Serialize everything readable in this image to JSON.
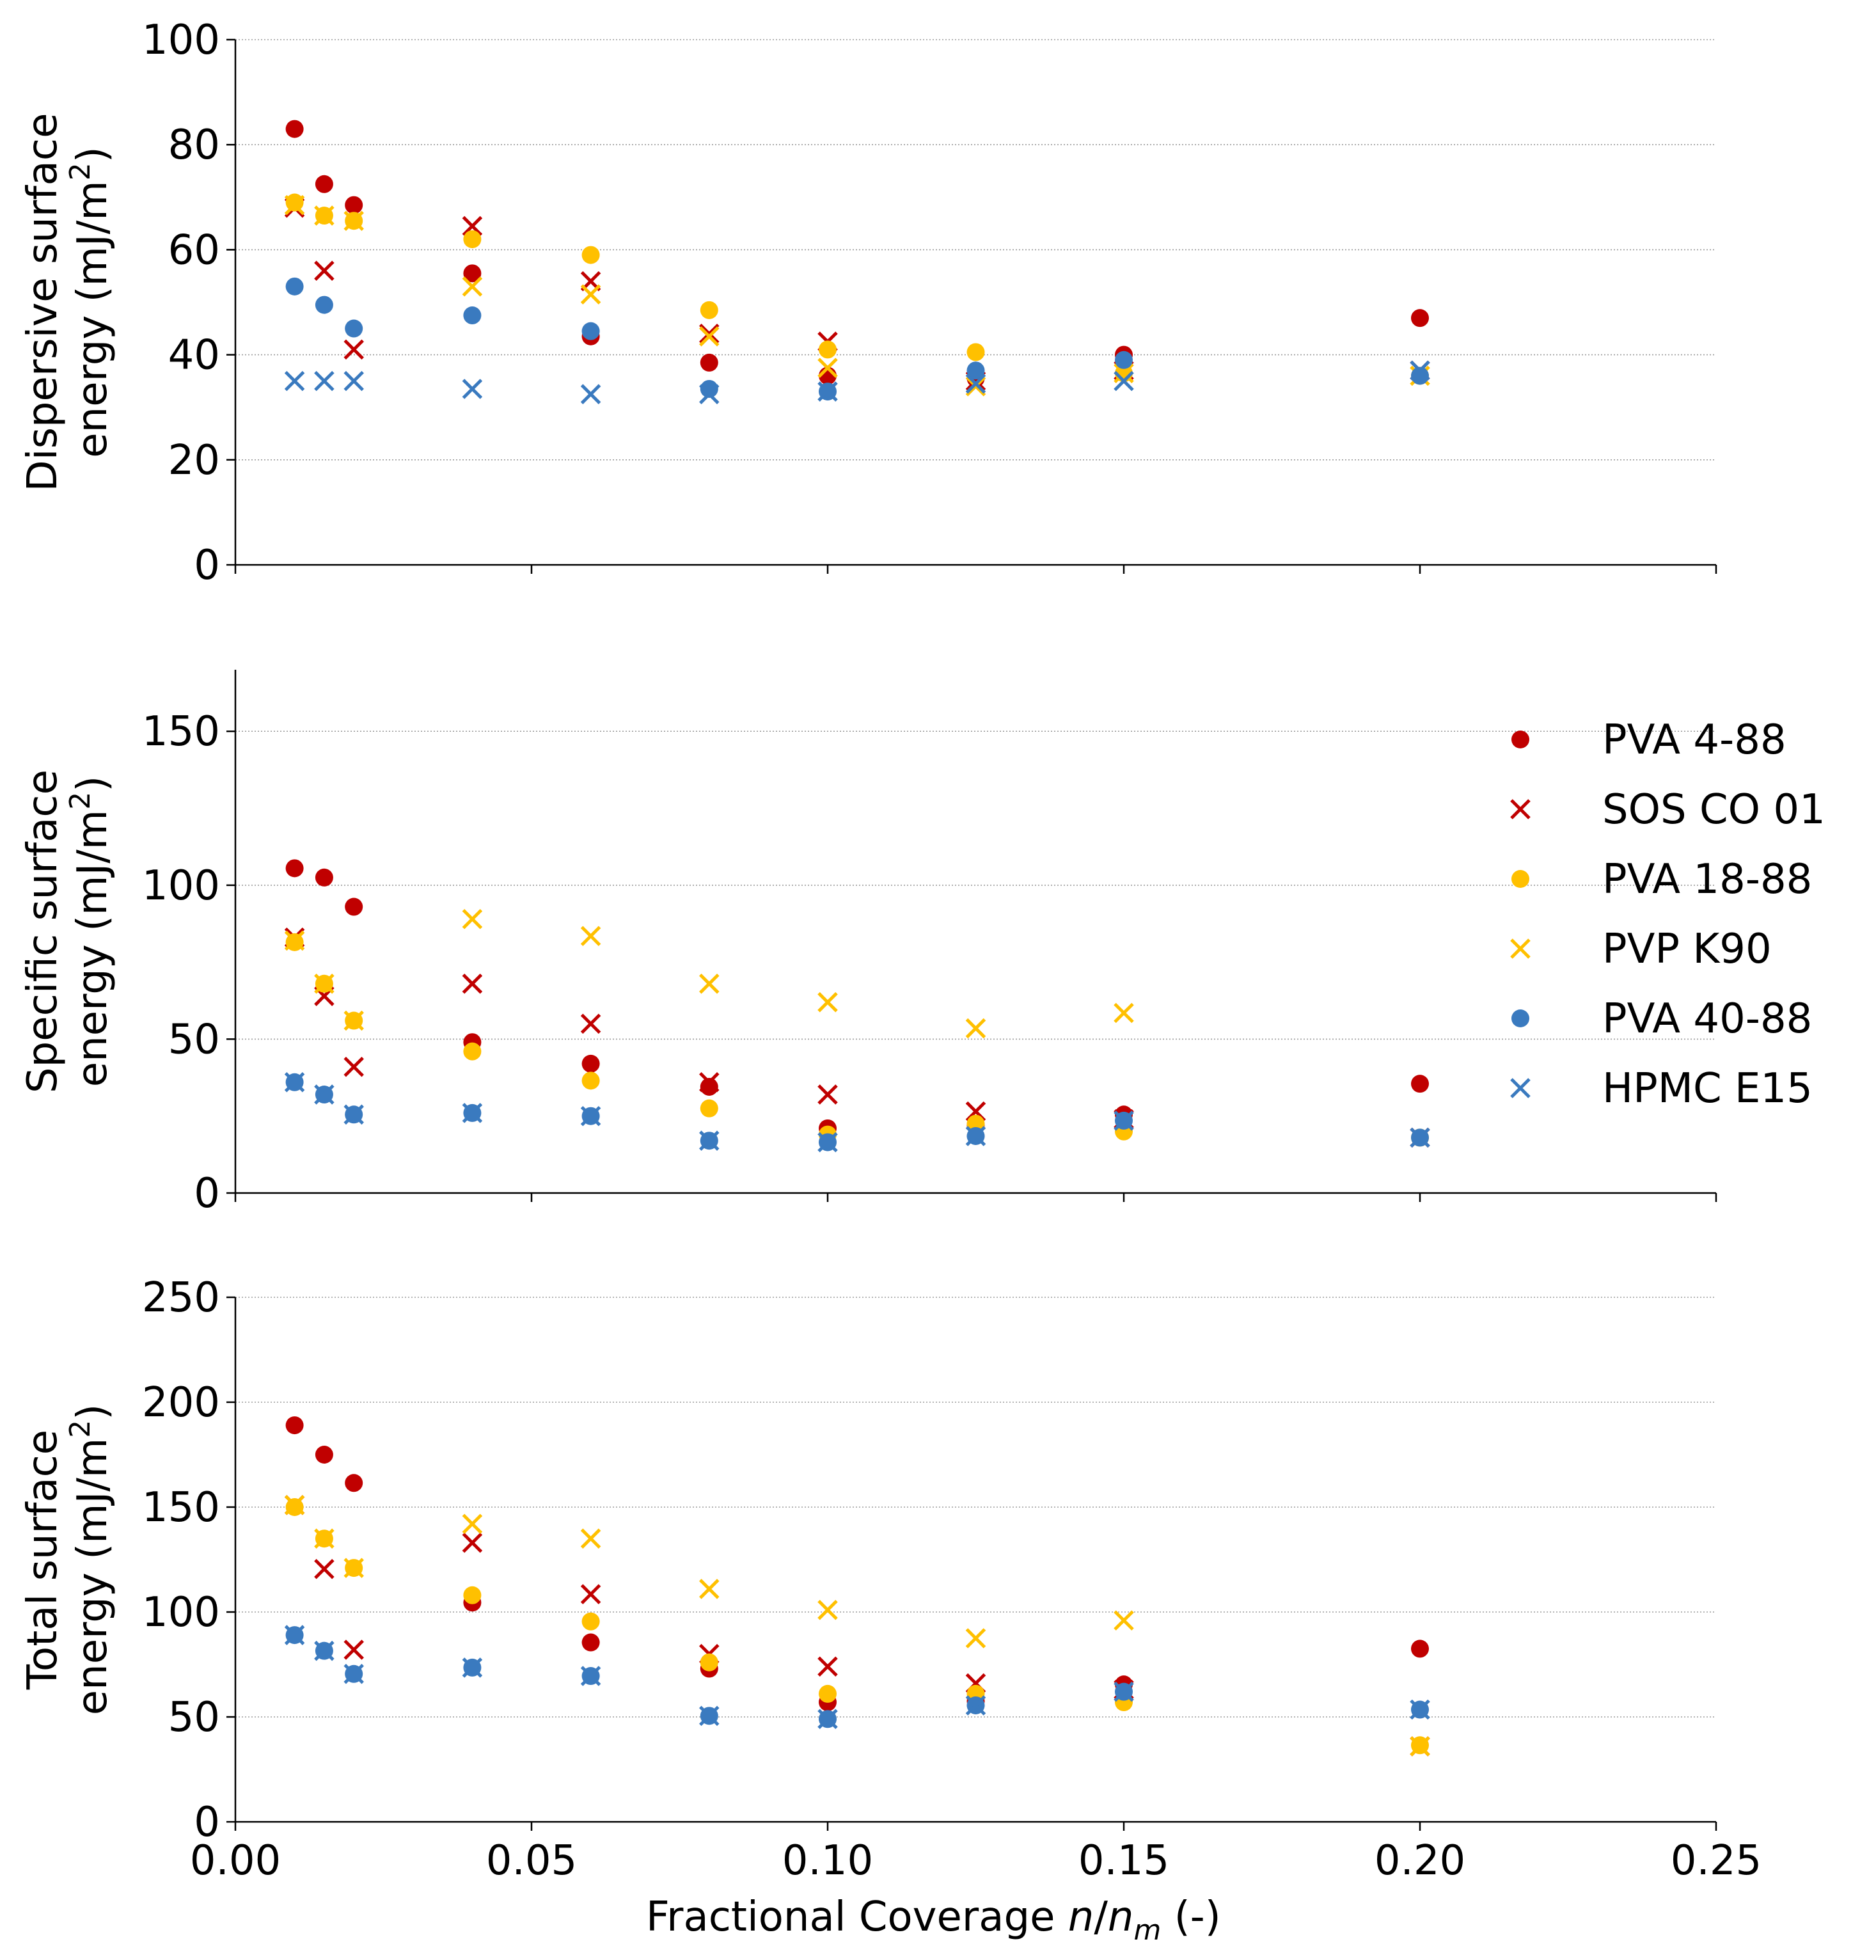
{
  "chart_data": {
    "type": "scatter",
    "shared_x_axis": {
      "label_prefix": "Fractional Coverage ",
      "label_var_n": "n",
      "label_slash": "/",
      "label_var_nm": "n",
      "label_sub": "m",
      "label_suffix": " (-)",
      "range": [
        0,
        0.25
      ],
      "ticks": [
        0,
        0.05,
        0.1,
        0.15,
        0.2,
        0.25
      ],
      "tick_labels": [
        "0.00",
        "0.05",
        "0.10",
        "0.15",
        "0.20",
        "0.25"
      ]
    },
    "legend": {
      "position": "right of middle panel",
      "entries": [
        {
          "name": "PVA 4-88",
          "marker": "circle",
          "color": "#c00000"
        },
        {
          "name": "SOS CO 01",
          "marker": "x",
          "color": "#c00000"
        },
        {
          "name": "PVA 18-88",
          "marker": "circle",
          "color": "#ffc000"
        },
        {
          "name": "PVP K90",
          "marker": "x",
          "color": "#ffc000"
        },
        {
          "name": "PVA 40-88",
          "marker": "circle",
          "color": "#3a7abf"
        },
        {
          "name": "HPMC E15",
          "marker": "x",
          "color": "#3a7abf"
        }
      ]
    },
    "panels": [
      {
        "id": "dispersive",
        "ylabel_line1": "Dispersive surface",
        "ylabel_line2_prefix": "energy (mJ/m",
        "ylabel_sup": "2",
        "ylabel_line2_suffix": ")",
        "ylim": [
          0,
          100
        ],
        "yticks": [
          0,
          20,
          40,
          60,
          80,
          100
        ],
        "ytick_labels": [
          "0",
          "20",
          "40",
          "60",
          "80",
          "100"
        ],
        "grid": "horizontal dotted",
        "series": [
          {
            "name": "PVA 4-88",
            "x": [
              0.01,
              0.015,
              0.02,
              0.04,
              0.06,
              0.08,
              0.1,
              0.125,
              0.15,
              0.2
            ],
            "y": [
              83,
              72.5,
              68.5,
              55.5,
              43.5,
              38.5,
              36,
              35.5,
              40,
              47
            ]
          },
          {
            "name": "SOS CO 01",
            "x": [
              0.01,
              0.015,
              0.02,
              0.04,
              0.06,
              0.08,
              0.1,
              0.125,
              0.15,
              0.2
            ],
            "y": [
              68,
              56,
              41,
              64.5,
              54,
              44,
              42.5,
              35,
              37,
              37
            ]
          },
          {
            "name": "PVA 18-88",
            "x": [
              0.01,
              0.015,
              0.02,
              0.04,
              0.06,
              0.08,
              0.1,
              0.125,
              0.15,
              0.2
            ],
            "y": [
              69,
              66.5,
              65.5,
              62,
              59,
              48.5,
              41,
              40.5,
              36.5,
              36
            ]
          },
          {
            "name": "PVP K90",
            "x": [
              0.01,
              0.015,
              0.02,
              0.04,
              0.06,
              0.08,
              0.1,
              0.125,
              0.15,
              0.2
            ],
            "y": [
              68.5,
              66.5,
              65.5,
              53,
              51.5,
              43.5,
              37.5,
              34,
              36.5,
              36
            ]
          },
          {
            "name": "PVA 40-88",
            "x": [
              0.01,
              0.015,
              0.02,
              0.04,
              0.06,
              0.08,
              0.1,
              0.125,
              0.15,
              0.2
            ],
            "y": [
              53,
              49.5,
              45,
              47.5,
              44.5,
              33.5,
              33,
              37,
              39,
              36
            ]
          },
          {
            "name": "HPMC E15",
            "x": [
              0.01,
              0.015,
              0.02,
              0.04,
              0.06,
              0.08,
              0.1,
              0.125,
              0.15,
              0.2
            ],
            "y": [
              35,
              35,
              35,
              33.5,
              32.5,
              32.5,
              33,
              34.5,
              35,
              37
            ]
          }
        ]
      },
      {
        "id": "specific",
        "ylabel_line1": "Specific surface",
        "ylabel_line2_prefix": "energy (mJ/m",
        "ylabel_sup": "2",
        "ylabel_line2_suffix": ")",
        "ylim": [
          0,
          170
        ],
        "yticks": [
          0,
          50,
          100,
          150
        ],
        "ytick_labels": [
          "0",
          "50",
          "100",
          "150"
        ],
        "grid": "horizontal dotted",
        "series": [
          {
            "name": "PVA 4-88",
            "x": [
              0.01,
              0.015,
              0.02,
              0.04,
              0.06,
              0.08,
              0.1,
              0.125,
              0.15,
              0.2
            ],
            "y": [
              105.5,
              102.5,
              93,
              49,
              42,
              34.5,
              21,
              22,
              25.5,
              35.5
            ]
          },
          {
            "name": "SOS CO 01",
            "x": [
              0.01,
              0.015,
              0.02,
              0.04,
              0.06,
              0.08,
              0.1,
              0.125,
              0.15,
              0.2
            ],
            "y": [
              83,
              64,
              41,
              68,
              55,
              36,
              32,
              26.5,
              24,
              18
            ]
          },
          {
            "name": "PVA 18-88",
            "x": [
              0.01,
              0.015,
              0.02,
              0.04,
              0.06,
              0.08,
              0.1,
              0.125,
              0.15,
              0.2
            ],
            "y": [
              81.5,
              68,
              56,
              46,
              36.5,
              27.5,
              19,
              22.5,
              20,
              18
            ]
          },
          {
            "name": "PVP K90",
            "x": [
              0.01,
              0.015,
              0.02,
              0.04,
              0.06,
              0.08,
              0.1,
              0.125,
              0.15
            ],
            "y": [
              82,
              68,
              56,
              89,
              83.5,
              68,
              62,
              53.5,
              58.5
            ]
          },
          {
            "name": "PVA 40-88",
            "x": [
              0.01,
              0.015,
              0.02,
              0.04,
              0.06,
              0.08,
              0.1,
              0.125,
              0.15,
              0.2
            ],
            "y": [
              36,
              32,
              25.5,
              26,
              25,
              17,
              16.5,
              18.5,
              23.5,
              18
            ]
          },
          {
            "name": "HPMC E15",
            "x": [
              0.01,
              0.015,
              0.02,
              0.04,
              0.06,
              0.08,
              0.1,
              0.125,
              0.15,
              0.2
            ],
            "y": [
              36,
              32,
              25.5,
              26,
              25,
              17,
              16.5,
              18.5,
              23.5,
              18
            ]
          }
        ]
      },
      {
        "id": "total",
        "ylabel_line1": "Total surface",
        "ylabel_line2_prefix": "energy (mJ/m",
        "ylabel_sup": "2",
        "ylabel_line2_suffix": ")",
        "ylim": [
          0,
          250
        ],
        "yticks": [
          0,
          50,
          100,
          150,
          200,
          250
        ],
        "ytick_labels": [
          "0",
          "50",
          "100",
          "150",
          "200",
          "250"
        ],
        "grid": "horizontal dotted",
        "series": [
          {
            "name": "PVA 4-88",
            "x": [
              0.01,
              0.015,
              0.02,
              0.04,
              0.06,
              0.08,
              0.1,
              0.125,
              0.15,
              0.2
            ],
            "y": [
              189,
              175,
              161.5,
              104.5,
              85.5,
              73,
              57,
              57.5,
              65.5,
              82.5
            ]
          },
          {
            "name": "SOS CO 01",
            "x": [
              0.01,
              0.015,
              0.02,
              0.04,
              0.06,
              0.08,
              0.1,
              0.125,
              0.15,
              0.2
            ],
            "y": [
              151,
              120.5,
              82,
              133,
              108.5,
              80,
              74,
              66,
              63,
              36
            ]
          },
          {
            "name": "PVA 18-88",
            "x": [
              0.01,
              0.015,
              0.02,
              0.04,
              0.06,
              0.08,
              0.1,
              0.125,
              0.15,
              0.2
            ],
            "y": [
              150,
              135,
              121,
              108,
              95.5,
              76,
              61,
              61,
              57,
              36.5
            ]
          },
          {
            "name": "PVP K90",
            "x": [
              0.01,
              0.015,
              0.02,
              0.04,
              0.06,
              0.08,
              0.1,
              0.125,
              0.15,
              0.2
            ],
            "y": [
              151,
              135,
              121,
              142,
              135,
              111,
              101,
              87.5,
              96,
              36
            ]
          },
          {
            "name": "PVA 40-88",
            "x": [
              0.01,
              0.015,
              0.02,
              0.04,
              0.06,
              0.08,
              0.1,
              0.125,
              0.15,
              0.2
            ],
            "y": [
              89,
              81.5,
              70.5,
              73.5,
              69.5,
              50.5,
              49,
              55.5,
              62,
              53.5
            ]
          },
          {
            "name": "HPMC E15",
            "x": [
              0.01,
              0.015,
              0.02,
              0.04,
              0.06,
              0.08,
              0.1,
              0.125,
              0.15,
              0.2
            ],
            "y": [
              89,
              81.5,
              70.5,
              73.5,
              69.5,
              50.5,
              49,
              55.5,
              62,
              53.5
            ]
          }
        ]
      }
    ]
  }
}
